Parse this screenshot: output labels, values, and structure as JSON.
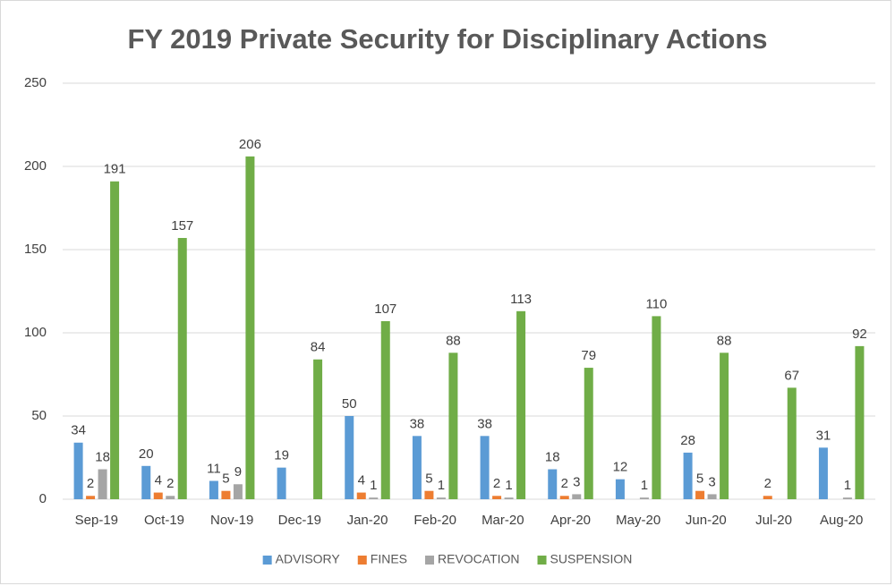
{
  "chart_data": {
    "type": "bar",
    "title": "FY 2019 Private Security for Disciplinary Actions",
    "categories": [
      "Sep-19",
      "Oct-19",
      "Nov-19",
      "Dec-19",
      "Jan-20",
      "Feb-20",
      "Mar-20",
      "Apr-20",
      "May-20",
      "Jun-20",
      "Jul-20",
      "Aug-20"
    ],
    "series": [
      {
        "name": "ADVISORY",
        "color": "#5b9bd5",
        "values": [
          34,
          20,
          11,
          19,
          50,
          38,
          38,
          18,
          12,
          28,
          null,
          31
        ]
      },
      {
        "name": "FINES",
        "color": "#ed7d31",
        "values": [
          2,
          4,
          5,
          null,
          4,
          5,
          2,
          2,
          null,
          5,
          2,
          null
        ]
      },
      {
        "name": "REVOCATION",
        "color": "#a5a5a5",
        "values": [
          18,
          2,
          9,
          null,
          1,
          1,
          1,
          3,
          1,
          3,
          null,
          1
        ]
      },
      {
        "name": "SUSPENSION",
        "color": "#70ad47",
        "values": [
          191,
          157,
          206,
          84,
          107,
          88,
          113,
          79,
          110,
          88,
          67,
          92
        ]
      }
    ],
    "ylim": [
      0,
      250
    ],
    "yticks": [
      0,
      50,
      100,
      150,
      200,
      250
    ],
    "grid": true,
    "legend": "bottom"
  }
}
